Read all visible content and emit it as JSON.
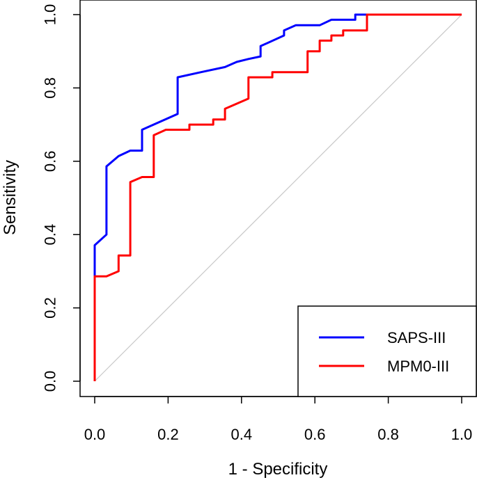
{
  "chart_data": {
    "type": "line",
    "title": "",
    "xlabel": "1 - Specificity",
    "ylabel": "Sensitivity",
    "xlim": [
      0,
      1
    ],
    "ylim": [
      0,
      1
    ],
    "xticks": [
      "0.0",
      "0.2",
      "0.4",
      "0.6",
      "0.8",
      "1.0"
    ],
    "yticks": [
      "0.0",
      "0.2",
      "0.4",
      "0.6",
      "0.8",
      "1.0"
    ],
    "grid": false,
    "legend_position": "bottom-right",
    "reference_line": {
      "x": [
        0,
        1
      ],
      "y": [
        0,
        1
      ],
      "color": "#c8c8c8"
    },
    "series": [
      {
        "name": "SAPS-III",
        "color": "#0000ff",
        "x": [
          0,
          0,
          0.032,
          0.032,
          0.065,
          0.097,
          0.129,
          0.129,
          0.226,
          0.226,
          0.29,
          0.355,
          0.387,
          0.419,
          0.452,
          0.452,
          0.516,
          0.516,
          0.548,
          0.613,
          0.645,
          0.71,
          0.71,
          1.0
        ],
        "y": [
          0,
          0.371,
          0.4,
          0.586,
          0.614,
          0.629,
          0.629,
          0.686,
          0.729,
          0.829,
          0.843,
          0.857,
          0.871,
          0.879,
          0.886,
          0.914,
          0.943,
          0.957,
          0.971,
          0.971,
          0.986,
          0.986,
          1.0,
          1.0
        ]
      },
      {
        "name": "MPM0-III",
        "color": "#ff0000",
        "x": [
          0,
          0,
          0.032,
          0.065,
          0.065,
          0.097,
          0.097,
          0.129,
          0.161,
          0.161,
          0.194,
          0.258,
          0.258,
          0.323,
          0.323,
          0.355,
          0.355,
          0.419,
          0.419,
          0.484,
          0.484,
          0.58,
          0.58,
          0.613,
          0.613,
          0.645,
          0.645,
          0.677,
          0.677,
          0.742,
          0.742,
          1.0
        ],
        "y": [
          0,
          0.286,
          0.286,
          0.3,
          0.343,
          0.343,
          0.543,
          0.557,
          0.557,
          0.671,
          0.686,
          0.686,
          0.7,
          0.7,
          0.714,
          0.714,
          0.743,
          0.771,
          0.829,
          0.829,
          0.843,
          0.843,
          0.9,
          0.9,
          0.929,
          0.929,
          0.943,
          0.943,
          0.957,
          0.957,
          1.0,
          1.0
        ]
      }
    ]
  }
}
